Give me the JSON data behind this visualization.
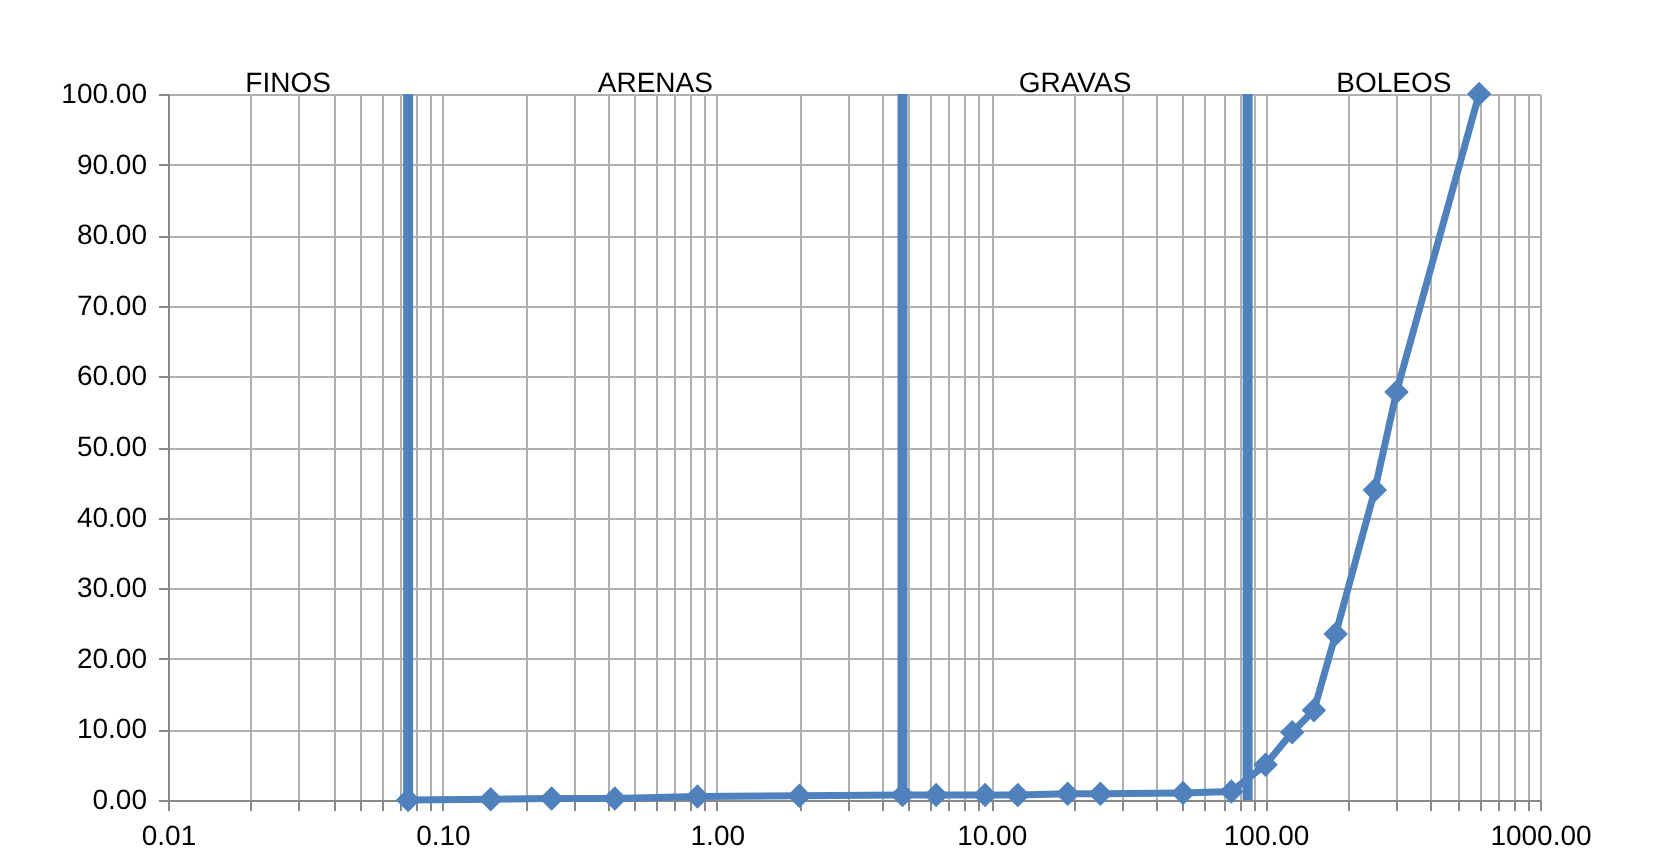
{
  "chart_data": {
    "type": "line",
    "x": [
      0.075,
      0.15,
      0.25,
      0.425,
      0.85,
      2,
      4.75,
      6.3,
      9.5,
      12.5,
      19,
      25,
      50,
      75,
      100,
      125,
      150,
      180,
      250,
      300,
      600
    ],
    "series": [
      {
        "color": "#4f81bd",
        "values": [
          0,
          0.1,
          0.2,
          0.2,
          0.5,
          0.6,
          0.7,
          0.7,
          0.7,
          0.7,
          0.9,
          0.9,
          1.0,
          1.2,
          5.0,
          9.6,
          12.7,
          23.5,
          43.9,
          57.8,
          100
        ]
      }
    ],
    "log": "x",
    "xlim": [
      0.01,
      1000
    ],
    "xticks": [
      {
        "value": 0.01,
        "label": "0.01"
      },
      {
        "value": 0.02,
        "label": null
      },
      {
        "value": 0.03,
        "label": null
      },
      {
        "value": 0.04,
        "label": null
      },
      {
        "value": 0.05,
        "label": null
      },
      {
        "value": 0.06,
        "label": null
      },
      {
        "value": 0.07,
        "label": null
      },
      {
        "value": 0.08,
        "label": null
      },
      {
        "value": 0.09,
        "label": null
      },
      {
        "value": 0.1,
        "label": "0.10"
      },
      {
        "value": 0.2,
        "label": null
      },
      {
        "value": 0.3,
        "label": null
      },
      {
        "value": 0.4,
        "label": null
      },
      {
        "value": 0.5,
        "label": null
      },
      {
        "value": 0.6,
        "label": null
      },
      {
        "value": 0.7,
        "label": null
      },
      {
        "value": 0.8,
        "label": null
      },
      {
        "value": 0.9,
        "label": null
      },
      {
        "value": 1,
        "label": "1.00"
      },
      {
        "value": 2,
        "label": null
      },
      {
        "value": 3,
        "label": null
      },
      {
        "value": 4,
        "label": null
      },
      {
        "value": 5,
        "label": null
      },
      {
        "value": 6,
        "label": null
      },
      {
        "value": 7,
        "label": null
      },
      {
        "value": 8,
        "label": null
      },
      {
        "value": 9,
        "label": null
      },
      {
        "value": 10,
        "label": "10.00"
      },
      {
        "value": 20,
        "label": null
      },
      {
        "value": 30,
        "label": null
      },
      {
        "value": 40,
        "label": null
      },
      {
        "value": 50,
        "label": null
      },
      {
        "value": 60,
        "label": null
      },
      {
        "value": 70,
        "label": null
      },
      {
        "value": 80,
        "label": null
      },
      {
        "value": 90,
        "label": null
      },
      {
        "value": 100,
        "label": "100.00"
      },
      {
        "value": 200,
        "label": null
      },
      {
        "value": 300,
        "label": null
      },
      {
        "value": 400,
        "label": null
      },
      {
        "value": 500,
        "label": null
      },
      {
        "value": 600,
        "label": null
      },
      {
        "value": 700,
        "label": null
      },
      {
        "value": 800,
        "label": null
      },
      {
        "value": 900,
        "label": null
      },
      {
        "value": 1000,
        "label": "1000.00"
      }
    ],
    "ylim": [
      0,
      100
    ],
    "yticks": [
      {
        "value": 0,
        "label": "0.00"
      },
      {
        "value": 10,
        "label": "10.00"
      },
      {
        "value": 20,
        "label": "20.00"
      },
      {
        "value": 30,
        "label": "30.00"
      },
      {
        "value": 40,
        "label": "40.00"
      },
      {
        "value": 50,
        "label": "50.00"
      },
      {
        "value": 60,
        "label": "60.00"
      },
      {
        "value": 70,
        "label": "70.00"
      },
      {
        "value": 80,
        "label": "80.00"
      },
      {
        "value": 90,
        "label": "90.00"
      },
      {
        "value": 100,
        "label": "100.00"
      }
    ],
    "ref_lines": [
      {
        "axis": "x",
        "value": 0.075,
        "color": "#4f81bd"
      },
      {
        "axis": "x",
        "value": 4.75,
        "color": "#4f81bd"
      },
      {
        "axis": "x",
        "value": 86,
        "color": "#4f81bd"
      }
    ],
    "annotations": [
      "FINOS",
      "ARENAS",
      "GRAVAS",
      "BOLEOS"
    ],
    "grid": true,
    "marker": "diamond",
    "line_style": "solid"
  }
}
